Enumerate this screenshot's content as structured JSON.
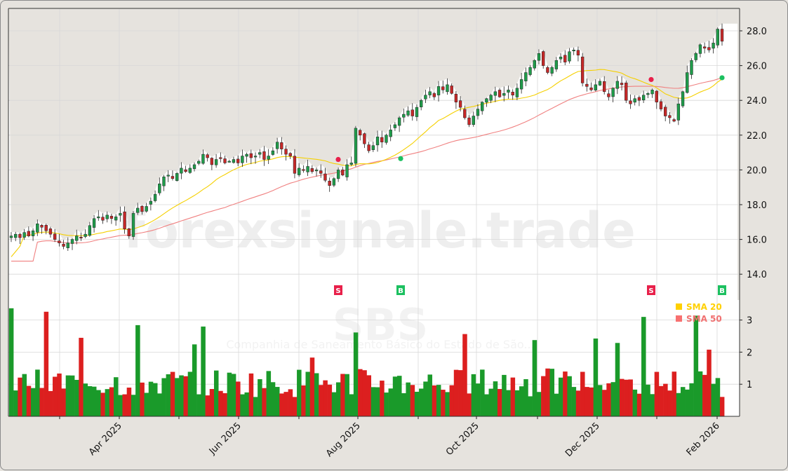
{
  "chart_data": {
    "type": "candlestick",
    "ticker": "SBS",
    "subtitle": "Companhia de Saneamento Básico do Estado de São...",
    "watermark": "forexsignale.trade",
    "price_axis": {
      "ticks": [
        "28.0",
        "26.0",
        "24.0",
        "22.0",
        "20.0",
        "18.0",
        "16.0",
        "14.0"
      ],
      "ylim": [
        13.0,
        29.2
      ]
    },
    "volume_axis": {
      "ticks": [
        "3",
        "2",
        "1"
      ],
      "ylim": [
        0,
        3.5
      ]
    },
    "x_axis": {
      "ticks": [
        "Apr 2025",
        "Jun 2025",
        "Aug 2025",
        "Oct 2025",
        "Dec 2025",
        "Feb 2026"
      ]
    },
    "legend": [
      {
        "label": "SMA 20",
        "color": "#ffd000"
      },
      {
        "label": "SMA 50",
        "color": "#f07070"
      }
    ],
    "signals": [
      {
        "type": "S",
        "label": "S",
        "approx_date": "Jul 2025",
        "price": 20.6,
        "color": "#e8204a"
      },
      {
        "type": "B",
        "label": "B",
        "approx_date": "Sep 2025",
        "price": 20.65,
        "color": "#1cc060"
      },
      {
        "type": "S",
        "label": "S",
        "approx_date": "Jan 2026",
        "price": 25.2,
        "color": "#e8204a"
      },
      {
        "type": "B",
        "label": "B",
        "approx_date": "Feb 2026",
        "price": 25.3,
        "color": "#1cc060"
      }
    ],
    "colors": {
      "up": "#1f9c4a",
      "down": "#c62828",
      "vol_up": "#1a9a2a",
      "vol_down": "#dc1f1f",
      "sma20": "#f5d000",
      "sma50": "#f08080",
      "bg_above": "#e6e3de",
      "bg_below": "#ffffff",
      "grid": "#d8d8d8"
    },
    "close_series_approx": [
      16.2,
      16.3,
      16.1,
      16.4,
      16.2,
      16.5,
      16.9,
      16.7,
      16.5,
      16.3,
      16.0,
      15.8,
      15.6,
      15.8,
      16.0,
      16.2,
      16.1,
      16.3,
      16.8,
      17.2,
      17.3,
      17.1,
      17.4,
      17.2,
      17.3,
      17.5,
      16.6,
      16.2,
      17.5,
      17.8,
      17.6,
      17.9,
      18.2,
      18.6,
      19.2,
      19.6,
      19.7,
      19.5,
      19.8,
      20.1,
      19.9,
      20.1,
      20.3,
      20.5,
      20.9,
      20.7,
      20.3,
      20.6,
      20.7,
      20.4,
      20.5,
      20.6,
      20.4,
      20.8,
      20.9,
      20.7,
      20.8,
      21.0,
      20.6,
      20.8,
      21.1,
      21.6,
      21.2,
      20.9,
      20.8,
      19.8,
      20.1,
      20.0,
      20.2,
      19.9,
      20.0,
      19.8,
      19.4,
      19.1,
      19.5,
      20.0,
      19.7,
      20.3,
      20.4,
      22.4,
      22.0,
      21.5,
      21.1,
      21.4,
      21.9,
      21.6,
      22.0,
      22.3,
      22.6,
      23.0,
      23.2,
      23.4,
      23.1,
      23.6,
      24.0,
      24.3,
      24.5,
      24.2,
      24.8,
      24.6,
      24.9,
      24.4,
      23.9,
      23.6,
      23.0,
      22.6,
      23.1,
      23.5,
      23.9,
      24.1,
      24.3,
      24.5,
      24.2,
      24.4,
      24.6,
      24.3,
      24.7,
      25.2,
      25.6,
      25.9,
      26.3,
      26.7,
      26.0,
      25.6,
      25.9,
      26.3,
      26.5,
      26.2,
      26.8,
      26.9,
      26.6,
      25.0,
      24.8,
      24.6,
      24.9,
      25.1,
      24.5,
      24.2,
      24.7,
      25.1,
      24.9,
      24.0,
      23.8,
      24.1,
      24.0,
      24.3,
      24.4,
      24.6,
      23.9,
      23.5,
      23.1,
      23.0,
      22.8,
      23.8,
      24.5,
      25.6,
      26.3,
      26.7,
      27.2,
      27.0,
      26.9,
      27.3,
      28.1,
      27.4
    ]
  },
  "ui": {
    "tick_dash": "-"
  }
}
